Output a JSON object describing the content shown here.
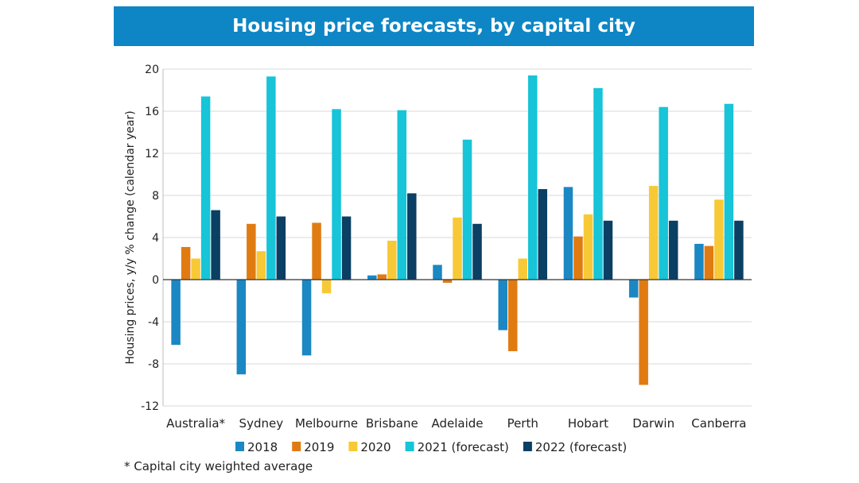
{
  "chart_data": {
    "type": "bar",
    "title": "Housing price forecasts, by capital city",
    "ylabel": "Housing prices, y/y % change (calendar year)",
    "xlabel": "",
    "ylim": [
      -12,
      20
    ],
    "yticks": [
      -12,
      -8,
      -4,
      0,
      4,
      8,
      12,
      16,
      20
    ],
    "grid": true,
    "categories": [
      "Australia*",
      "Sydney",
      "Melbourne",
      "Brisbane",
      "Adelaide",
      "Perth",
      "Hobart",
      "Darwin",
      "Canberra"
    ],
    "series": [
      {
        "name": "2018",
        "color": "#1b87c3",
        "values": [
          -6.2,
          -9.0,
          -7.2,
          0.4,
          1.4,
          -4.8,
          8.8,
          -1.7,
          3.4
        ]
      },
      {
        "name": "2019",
        "color": "#e07b12",
        "values": [
          3.1,
          5.3,
          5.4,
          0.5,
          -0.3,
          -6.8,
          4.1,
          -10.0,
          3.2
        ]
      },
      {
        "name": "2020",
        "color": "#f8c936",
        "values": [
          2.0,
          2.7,
          -1.3,
          3.7,
          5.9,
          2.0,
          6.2,
          8.9,
          7.6
        ]
      },
      {
        "name": "2021 (forecast)",
        "color": "#17c4d8",
        "values": [
          17.4,
          19.3,
          16.2,
          16.1,
          13.3,
          19.4,
          18.2,
          16.4,
          16.7
        ]
      },
      {
        "name": "2022 (forecast)",
        "color": "#0b3f63",
        "values": [
          6.6,
          6.0,
          6.0,
          8.2,
          5.3,
          8.6,
          5.6,
          5.6,
          5.6
        ]
      }
    ],
    "legend_position": "bottom",
    "footnote": "* Capital city weighted average"
  }
}
